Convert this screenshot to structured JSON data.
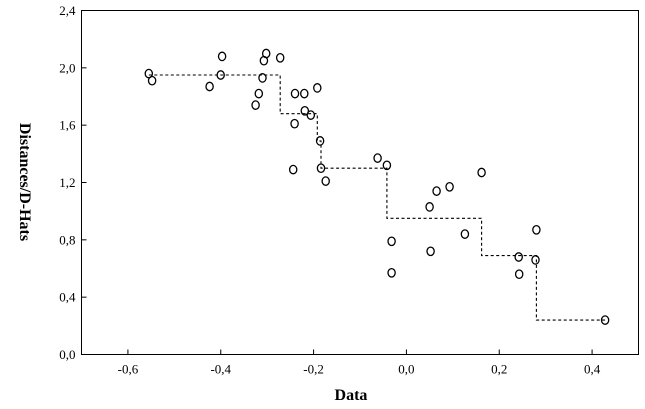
{
  "chart_data": {
    "type": "scatter",
    "xlabel": "Data",
    "ylabel": "Distances/D-Hats",
    "xlim": [
      -0.7,
      0.5
    ],
    "ylim": [
      0.0,
      2.4
    ],
    "x_ticks": [
      -0.6,
      -0.4,
      -0.2,
      0.0,
      0.2,
      0.4
    ],
    "x_tick_labels": [
      "-0,6",
      "-0,4",
      "-0,2",
      "0,0",
      "0,2",
      "0,4"
    ],
    "y_ticks": [
      0.0,
      0.4,
      0.8,
      1.2,
      1.6,
      2.0,
      2.4
    ],
    "y_tick_labels": [
      "0,0",
      "0,4",
      "0,8",
      "1,2",
      "1,6",
      "2,0",
      "2,4"
    ],
    "grid": false,
    "series": [
      {
        "style": "circle-markers",
        "points": [
          {
            "x": -0.555,
            "y": 1.96
          },
          {
            "x": -0.548,
            "y": 1.91
          },
          {
            "x": -0.424,
            "y": 1.87
          },
          {
            "x": -0.4,
            "y": 1.95
          },
          {
            "x": -0.397,
            "y": 2.08
          },
          {
            "x": -0.325,
            "y": 1.74
          },
          {
            "x": -0.318,
            "y": 1.82
          },
          {
            "x": -0.31,
            "y": 1.93
          },
          {
            "x": -0.307,
            "y": 2.05
          },
          {
            "x": -0.302,
            "y": 2.1
          },
          {
            "x": -0.272,
            "y": 2.07
          },
          {
            "x": -0.244,
            "y": 1.29
          },
          {
            "x": -0.241,
            "y": 1.61
          },
          {
            "x": -0.24,
            "y": 1.82
          },
          {
            "x": -0.22,
            "y": 1.82
          },
          {
            "x": -0.219,
            "y": 1.7
          },
          {
            "x": -0.206,
            "y": 1.67
          },
          {
            "x": -0.192,
            "y": 1.86
          },
          {
            "x": -0.186,
            "y": 1.49
          },
          {
            "x": -0.184,
            "y": 1.3
          },
          {
            "x": -0.174,
            "y": 1.21
          },
          {
            "x": -0.062,
            "y": 1.37
          },
          {
            "x": -0.042,
            "y": 1.32
          },
          {
            "x": -0.032,
            "y": 0.79
          },
          {
            "x": -0.032,
            "y": 0.57
          },
          {
            "x": 0.05,
            "y": 1.03
          },
          {
            "x": 0.052,
            "y": 0.72
          },
          {
            "x": 0.065,
            "y": 1.14
          },
          {
            "x": 0.093,
            "y": 1.17
          },
          {
            "x": 0.126,
            "y": 0.84
          },
          {
            "x": 0.162,
            "y": 1.27
          },
          {
            "x": 0.242,
            "y": 0.68
          },
          {
            "x": 0.243,
            "y": 0.56
          },
          {
            "x": 0.278,
            "y": 0.66
          },
          {
            "x": 0.28,
            "y": 0.87
          },
          {
            "x": 0.428,
            "y": 0.24
          }
        ]
      },
      {
        "style": "dashed-step",
        "points": [
          {
            "x": -0.555,
            "y": 1.95
          },
          {
            "x": -0.272,
            "y": 1.95
          },
          {
            "x": -0.272,
            "y": 1.68
          },
          {
            "x": -0.192,
            "y": 1.68
          },
          {
            "x": -0.192,
            "y": 1.49
          },
          {
            "x": -0.184,
            "y": 1.49
          },
          {
            "x": -0.184,
            "y": 1.3
          },
          {
            "x": -0.042,
            "y": 1.3
          },
          {
            "x": -0.042,
            "y": 0.95
          },
          {
            "x": 0.162,
            "y": 0.95
          },
          {
            "x": 0.162,
            "y": 0.69
          },
          {
            "x": 0.28,
            "y": 0.69
          },
          {
            "x": 0.28,
            "y": 0.24
          },
          {
            "x": 0.428,
            "y": 0.24
          }
        ]
      }
    ]
  }
}
